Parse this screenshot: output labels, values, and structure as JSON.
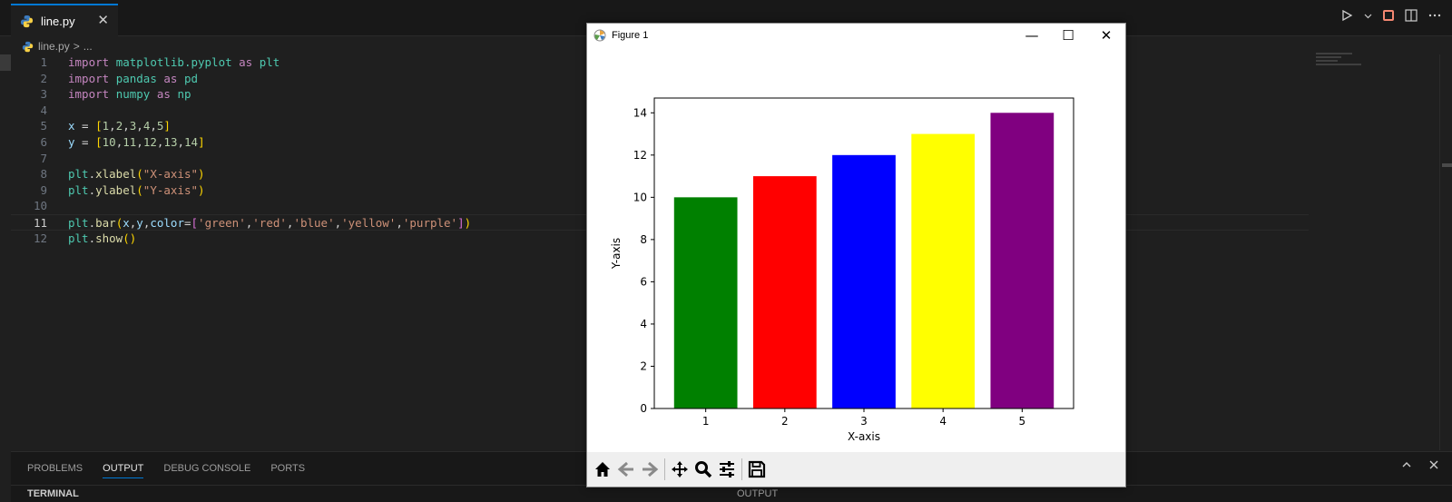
{
  "editor": {
    "tab": {
      "label": "line.py",
      "close": "✕"
    },
    "breadcrumb": {
      "file": "line.py",
      "sep": ">",
      "more": "..."
    },
    "lines": [
      {
        "n": "1",
        "tokens": [
          [
            "kw",
            "import"
          ],
          [
            "op",
            " "
          ],
          [
            "mod",
            "matplotlib.pyplot"
          ],
          [
            "op",
            " "
          ],
          [
            "kw",
            "as"
          ],
          [
            "op",
            " "
          ],
          [
            "mod",
            "plt"
          ]
        ]
      },
      {
        "n": "2",
        "tokens": [
          [
            "kw",
            "import"
          ],
          [
            "op",
            " "
          ],
          [
            "mod",
            "pandas"
          ],
          [
            "op",
            " "
          ],
          [
            "kw",
            "as"
          ],
          [
            "op",
            " "
          ],
          [
            "mod",
            "pd"
          ]
        ]
      },
      {
        "n": "3",
        "tokens": [
          [
            "kw",
            "import"
          ],
          [
            "op",
            " "
          ],
          [
            "mod",
            "numpy"
          ],
          [
            "op",
            " "
          ],
          [
            "kw",
            "as"
          ],
          [
            "op",
            " "
          ],
          [
            "mod",
            "np"
          ]
        ]
      },
      {
        "n": "4",
        "tokens": []
      },
      {
        "n": "5",
        "tokens": [
          [
            "var",
            "x"
          ],
          [
            "op",
            " = "
          ],
          [
            "br1",
            "["
          ],
          [
            "num",
            "1"
          ],
          [
            "op",
            ","
          ],
          [
            "num",
            "2"
          ],
          [
            "op",
            ","
          ],
          [
            "num",
            "3"
          ],
          [
            "op",
            ","
          ],
          [
            "num",
            "4"
          ],
          [
            "op",
            ","
          ],
          [
            "num",
            "5"
          ],
          [
            "br1",
            "]"
          ]
        ]
      },
      {
        "n": "6",
        "tokens": [
          [
            "var",
            "y"
          ],
          [
            "op",
            " = "
          ],
          [
            "br1",
            "["
          ],
          [
            "num",
            "10"
          ],
          [
            "op",
            ","
          ],
          [
            "num",
            "11"
          ],
          [
            "op",
            ","
          ],
          [
            "num",
            "12"
          ],
          [
            "op",
            ","
          ],
          [
            "num",
            "13"
          ],
          [
            "op",
            ","
          ],
          [
            "num",
            "14"
          ],
          [
            "br1",
            "]"
          ]
        ]
      },
      {
        "n": "7",
        "tokens": []
      },
      {
        "n": "8",
        "tokens": [
          [
            "mod",
            "plt"
          ],
          [
            "op",
            "."
          ],
          [
            "fn",
            "xlabel"
          ],
          [
            "br1",
            "("
          ],
          [
            "str",
            "\"X-axis\""
          ],
          [
            "br1",
            ")"
          ]
        ]
      },
      {
        "n": "9",
        "tokens": [
          [
            "mod",
            "plt"
          ],
          [
            "op",
            "."
          ],
          [
            "fn",
            "ylabel"
          ],
          [
            "br1",
            "("
          ],
          [
            "str",
            "\"Y-axis\""
          ],
          [
            "br1",
            ")"
          ]
        ]
      },
      {
        "n": "10",
        "tokens": []
      },
      {
        "n": "11",
        "current": true,
        "tokens": [
          [
            "mod",
            "plt"
          ],
          [
            "op",
            "."
          ],
          [
            "fn",
            "bar"
          ],
          [
            "br1",
            "("
          ],
          [
            "var",
            "x"
          ],
          [
            "op",
            ","
          ],
          [
            "var",
            "y"
          ],
          [
            "op",
            ","
          ],
          [
            "var",
            "color"
          ],
          [
            "op",
            "="
          ],
          [
            "br2",
            "["
          ],
          [
            "str",
            "'green'"
          ],
          [
            "op",
            ","
          ],
          [
            "str",
            "'red'"
          ],
          [
            "op",
            ","
          ],
          [
            "str",
            "'blue'"
          ],
          [
            "op",
            ","
          ],
          [
            "str",
            "'yellow'"
          ],
          [
            "op",
            ","
          ],
          [
            "str",
            "'purple'"
          ],
          [
            "br2",
            "]"
          ],
          [
            "br1",
            ")"
          ]
        ]
      },
      {
        "n": "12",
        "tokens": [
          [
            "mod",
            "plt"
          ],
          [
            "op",
            "."
          ],
          [
            "fn",
            "show"
          ],
          [
            "br1",
            "()"
          ]
        ]
      }
    ]
  },
  "panel": {
    "tabs": [
      "PROBLEMS",
      "OUTPUT",
      "DEBUG CONSOLE",
      "PORTS"
    ],
    "active_tab": "OUTPUT",
    "terminal_label": "TERMINAL",
    "output_label": "OUTPUT"
  },
  "figure": {
    "title": "Figure 1",
    "minimize": "—",
    "maximize": "☐",
    "close": "✕"
  },
  "chart_data": {
    "type": "bar",
    "categories": [
      "1",
      "2",
      "3",
      "4",
      "5"
    ],
    "values": [
      10,
      11,
      12,
      13,
      14
    ],
    "colors": [
      "#008000",
      "#ff0000",
      "#0000ff",
      "#ffff00",
      "#800080"
    ],
    "xlabel": "X-axis",
    "ylabel": "Y-axis",
    "ylim": [
      0,
      14.7
    ],
    "yticks": [
      0,
      2,
      4,
      6,
      8,
      10,
      12,
      14
    ],
    "grid": false
  },
  "colors": {
    "accent": "#0078d4",
    "editor_bg": "#1f1f1f"
  }
}
